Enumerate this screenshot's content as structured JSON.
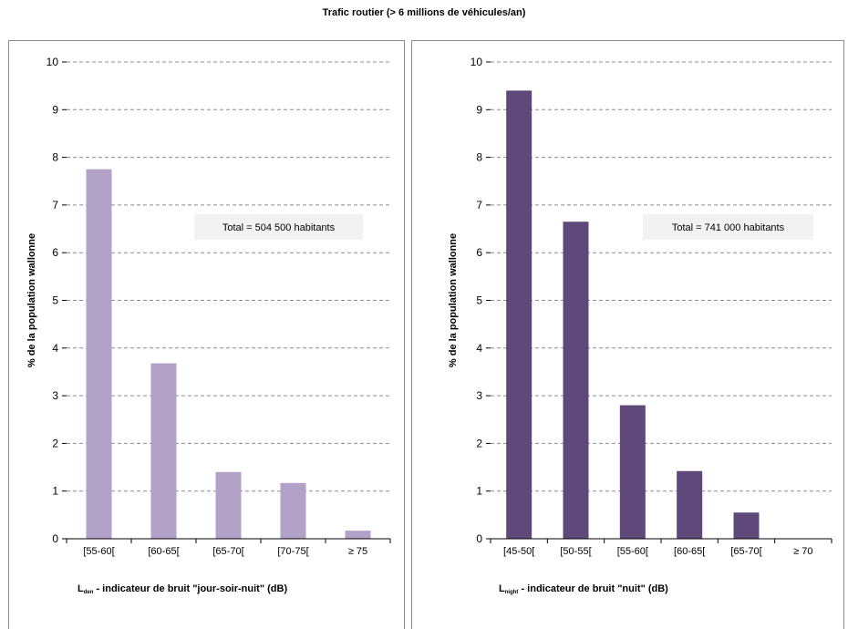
{
  "title": "Trafic routier (> 6 millions de véhicules/an)",
  "colors": {
    "left_bars": "#b3a2c7",
    "right_bars": "#5f497a",
    "grid": "#8c8c8c",
    "box": "#f2f2f2"
  },
  "chart_data": [
    {
      "type": "bar",
      "categories": [
        "[55-60[",
        "[60-65[",
        "[65-70[",
        "[70-75[",
        "≥ 75"
      ],
      "values": [
        7.75,
        3.68,
        1.4,
        1.17,
        0.17
      ],
      "ylabel": "% de la population wallonne",
      "xlabel_main": "L",
      "xlabel_sub": "den",
      "xlabel_rest": " - indicateur de bruit \"jour-soir-nuit\" (dB)",
      "ylim": [
        0,
        10
      ],
      "yticks": [
        "0",
        "1",
        "2",
        "3",
        "4",
        "5",
        "6",
        "7",
        "8",
        "9",
        "10"
      ],
      "grid": true,
      "annotation": "Total = 504 500 habitants"
    },
    {
      "type": "bar",
      "categories": [
        "[45-50[",
        "[50-55[",
        "[55-60[",
        "[60-65[",
        "[65-70[",
        "≥ 70"
      ],
      "values": [
        9.4,
        6.65,
        2.8,
        1.42,
        0.55,
        0
      ],
      "ylabel": "% de la population wallonne",
      "xlabel_main": "L",
      "xlabel_sub": "night",
      "xlabel_rest": " - indicateur de bruit \"nuit\" (dB)",
      "ylim": [
        0,
        10
      ],
      "yticks": [
        "0",
        "1",
        "2",
        "3",
        "4",
        "5",
        "6",
        "7",
        "8",
        "9",
        "10"
      ],
      "grid": true,
      "annotation": "Total = 741 000 habitants"
    }
  ]
}
